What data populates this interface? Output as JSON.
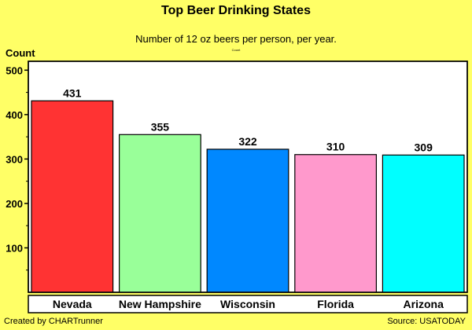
{
  "chart_data": {
    "type": "bar",
    "title": "Top Beer Drinking States",
    "subtitle": "Number of 12 oz beers per person, per year.",
    "subsubtitle": "Count",
    "ylabel": "Count",
    "xlabel": "",
    "categories": [
      "Nevada",
      "New Hampshire",
      "Wisconsin",
      "Florida",
      "Arizona"
    ],
    "values": [
      431,
      355,
      322,
      310,
      309
    ],
    "colors": [
      "#ff3333",
      "#99ff99",
      "#0088ff",
      "#ff99cc",
      "#00ffff"
    ],
    "ylim": [
      0,
      520
    ],
    "yticks": [
      100,
      200,
      300,
      400,
      500
    ],
    "grid": false,
    "legend": "none"
  },
  "footer": {
    "left": "Created by CHARTrunner",
    "right": "Source: USATODAY"
  },
  "colors": {
    "background": "#ffff66",
    "plot_background": "#ffffff"
  }
}
